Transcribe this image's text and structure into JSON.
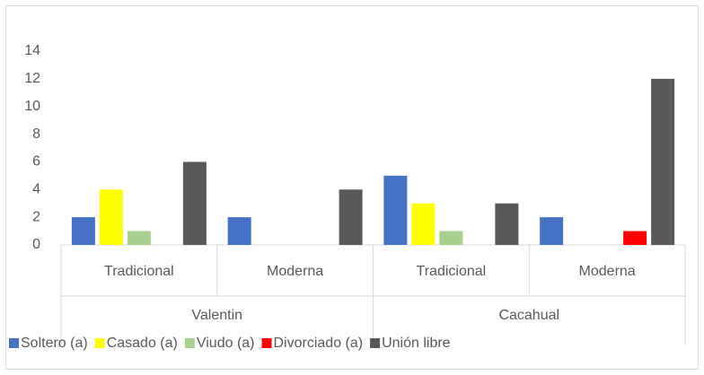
{
  "chart_data": {
    "type": "bar",
    "groups": [
      {
        "name": "Valentin",
        "categories": [
          "Tradicional",
          "Moderna"
        ]
      },
      {
        "name": "Cacahual",
        "categories": [
          "Tradicional",
          "Moderna"
        ]
      }
    ],
    "series": [
      {
        "name": "Soltero (a)",
        "color": "#4472c4",
        "values": [
          2,
          2,
          5,
          2
        ]
      },
      {
        "name": "Casado (a)",
        "color": "#ffff00",
        "values": [
          4,
          0,
          3,
          0
        ]
      },
      {
        "name": "Viudo (a)",
        "color": "#a9d18e",
        "values": [
          1,
          0,
          1,
          0
        ]
      },
      {
        "name": "Divorciado (a)",
        "color": "#ff0000",
        "values": [
          0,
          0,
          0,
          1
        ]
      },
      {
        "name": "Unión libre",
        "color": "#595959",
        "values": [
          6,
          4,
          3,
          12
        ]
      }
    ],
    "ylim": [
      0,
      14
    ],
    "yticks": [
      0,
      2,
      4,
      6,
      8,
      10,
      12,
      14
    ],
    "grid": false,
    "legend": "bottom"
  }
}
